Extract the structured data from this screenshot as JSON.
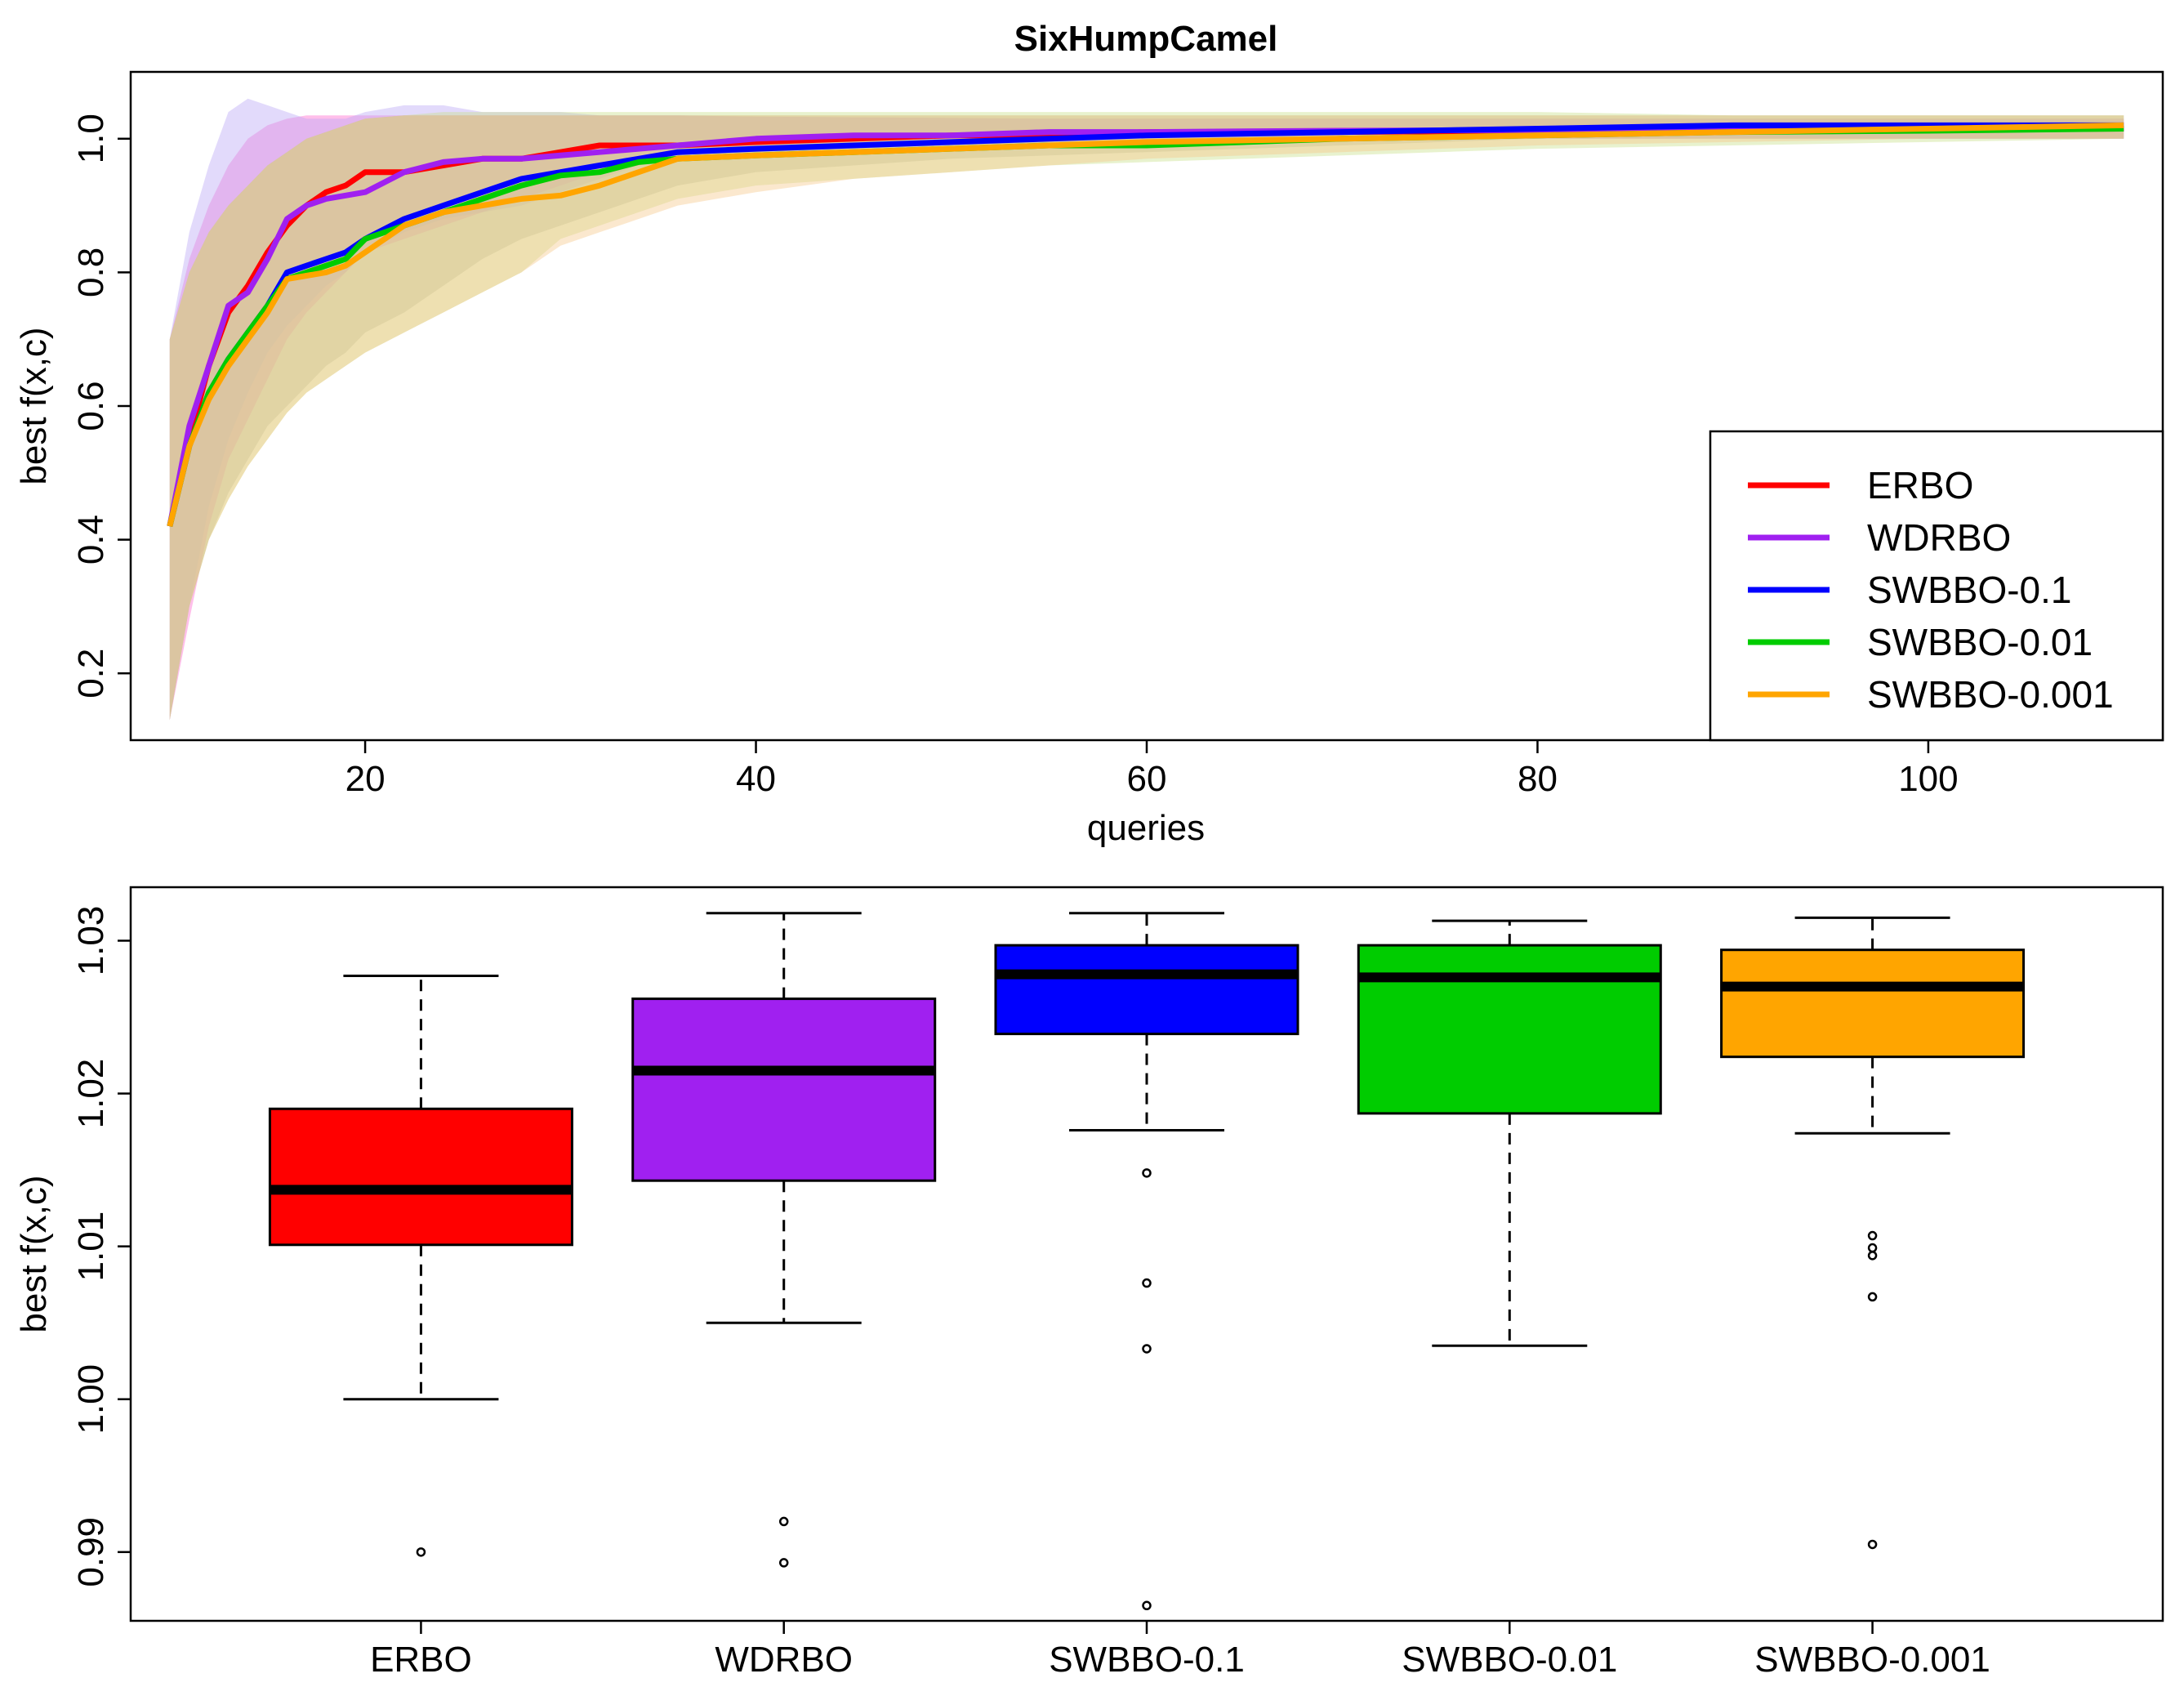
{
  "chart_data": [
    {
      "type": "line",
      "title": "SixHumpCamel",
      "xlabel": "queries",
      "ylabel": "best f(x,c)",
      "xlim": [
        8,
        112
      ],
      "ylim": [
        0.1,
        1.1
      ],
      "x_ticks": [
        20,
        40,
        60,
        80,
        100
      ],
      "y_ticks": [
        0.2,
        0.4,
        0.6,
        0.8,
        1.0
      ],
      "x_tick_labels": [
        "20",
        "40",
        "60",
        "80",
        "100"
      ],
      "y_tick_labels": [
        "0.2",
        "0.4",
        "0.6",
        "0.8",
        "1.0"
      ],
      "legend_position": "bottom-right",
      "x": [
        10,
        11,
        12,
        13,
        14,
        15,
        16,
        17,
        18,
        19,
        20,
        22,
        24,
        26,
        28,
        30,
        32,
        34,
        36,
        40,
        45,
        50,
        55,
        60,
        70,
        80,
        90,
        100,
        110
      ],
      "series": [
        {
          "name": "ERBO",
          "color": "#ff0000",
          "band_color": "#ff66cc",
          "mean": [
            0.42,
            0.55,
            0.66,
            0.74,
            0.78,
            0.83,
            0.87,
            0.9,
            0.92,
            0.93,
            0.95,
            0.95,
            0.96,
            0.97,
            0.97,
            0.98,
            0.99,
            0.99,
            0.99,
            0.995,
            1.0,
            1.005,
            1.005,
            1.01,
            1.01,
            1.012,
            1.013,
            1.014,
            1.015
          ],
          "lower": [
            0.13,
            0.28,
            0.42,
            0.52,
            0.58,
            0.64,
            0.7,
            0.74,
            0.77,
            0.8,
            0.83,
            0.85,
            0.87,
            0.89,
            0.91,
            0.93,
            0.95,
            0.96,
            0.97,
            0.98,
            0.985,
            0.99,
            0.995,
            0.995,
            1.0,
            1.0,
            1.0,
            1.0,
            1.0
          ],
          "upper": [
            0.7,
            0.82,
            0.9,
            0.96,
            1.0,
            1.02,
            1.03,
            1.035,
            1.035,
            1.035,
            1.035,
            1.035,
            1.035,
            1.035,
            1.035,
            1.035,
            1.035,
            1.035,
            1.035,
            1.033,
            1.032,
            1.031,
            1.03,
            1.03,
            1.03,
            1.03,
            1.03,
            1.03,
            1.03
          ]
        },
        {
          "name": "WDRBO",
          "color": "#a020f0",
          "band_color": "#b9a6f5",
          "mean": [
            0.42,
            0.57,
            0.66,
            0.75,
            0.77,
            0.82,
            0.88,
            0.9,
            0.91,
            0.915,
            0.92,
            0.95,
            0.965,
            0.97,
            0.97,
            0.975,
            0.98,
            0.985,
            0.99,
            1.0,
            1.005,
            1.005,
            1.01,
            1.01,
            1.012,
            1.013,
            1.014,
            1.015,
            1.015
          ],
          "lower": [
            0.13,
            0.3,
            0.45,
            0.55,
            0.62,
            0.68,
            0.72,
            0.75,
            0.78,
            0.8,
            0.83,
            0.86,
            0.88,
            0.89,
            0.9,
            0.92,
            0.94,
            0.96,
            0.97,
            0.98,
            0.985,
            0.99,
            0.99,
            0.995,
            1.0,
            1.0,
            1.0,
            1.0,
            1.0
          ],
          "upper": [
            0.7,
            0.86,
            0.96,
            1.04,
            1.06,
            1.05,
            1.04,
            1.03,
            1.03,
            1.03,
            1.04,
            1.05,
            1.05,
            1.04,
            1.04,
            1.04,
            1.035,
            1.035,
            1.035,
            1.033,
            1.032,
            1.031,
            1.03,
            1.03,
            1.03,
            1.03,
            1.03,
            1.03,
            1.03
          ]
        },
        {
          "name": "SWBBO-0.1",
          "color": "#0000ff",
          "band_color": "#a8a8a0",
          "mean": [
            0.42,
            0.54,
            0.62,
            0.67,
            0.71,
            0.75,
            0.8,
            0.81,
            0.82,
            0.83,
            0.85,
            0.88,
            0.9,
            0.92,
            0.94,
            0.95,
            0.96,
            0.97,
            0.98,
            0.985,
            0.99,
            0.995,
            1.0,
            1.005,
            1.01,
            1.015,
            1.02,
            1.02,
            1.02
          ],
          "lower": [
            0.13,
            0.3,
            0.4,
            0.47,
            0.52,
            0.57,
            0.6,
            0.63,
            0.66,
            0.68,
            0.71,
            0.74,
            0.78,
            0.82,
            0.85,
            0.87,
            0.89,
            0.91,
            0.93,
            0.95,
            0.96,
            0.97,
            0.975,
            0.98,
            0.99,
            1.0,
            1.0,
            1.0,
            1.0
          ],
          "upper": [
            0.7,
            0.8,
            0.86,
            0.9,
            0.93,
            0.96,
            0.98,
            1.0,
            1.01,
            1.02,
            1.03,
            1.035,
            1.035,
            1.035,
            1.035,
            1.035,
            1.035,
            1.035,
            1.035,
            1.035,
            1.035,
            1.035,
            1.035,
            1.035,
            1.035,
            1.035,
            1.035,
            1.035,
            1.035
          ]
        },
        {
          "name": "SWBBO-0.01",
          "color": "#00cc00",
          "band_color": "#c8e08a",
          "mean": [
            0.42,
            0.54,
            0.62,
            0.67,
            0.71,
            0.75,
            0.79,
            0.8,
            0.81,
            0.82,
            0.85,
            0.87,
            0.89,
            0.91,
            0.93,
            0.945,
            0.95,
            0.965,
            0.97,
            0.975,
            0.98,
            0.985,
            0.99,
            0.99,
            1.0,
            1.005,
            1.01,
            1.012,
            1.015
          ],
          "lower": [
            0.13,
            0.3,
            0.4,
            0.46,
            0.51,
            0.55,
            0.59,
            0.62,
            0.64,
            0.66,
            0.68,
            0.71,
            0.74,
            0.77,
            0.8,
            0.85,
            0.87,
            0.89,
            0.91,
            0.93,
            0.94,
            0.95,
            0.96,
            0.965,
            0.975,
            0.985,
            0.99,
            0.995,
            1.0
          ],
          "upper": [
            0.7,
            0.8,
            0.86,
            0.9,
            0.93,
            0.96,
            0.98,
            1.0,
            1.01,
            1.02,
            1.03,
            1.035,
            1.04,
            1.04,
            1.04,
            1.04,
            1.04,
            1.04,
            1.04,
            1.04,
            1.04,
            1.04,
            1.04,
            1.04,
            1.04,
            1.04,
            1.035,
            1.035,
            1.035
          ]
        },
        {
          "name": "SWBBO-0.001",
          "color": "#ffa500",
          "band_color": "#f5c98a",
          "mean": [
            0.42,
            0.54,
            0.61,
            0.66,
            0.7,
            0.74,
            0.79,
            0.795,
            0.8,
            0.81,
            0.83,
            0.87,
            0.89,
            0.9,
            0.91,
            0.915,
            0.93,
            0.95,
            0.97,
            0.975,
            0.98,
            0.985,
            0.99,
            0.995,
            1.0,
            1.005,
            1.01,
            1.015,
            1.02
          ],
          "lower": [
            0.13,
            0.3,
            0.4,
            0.46,
            0.51,
            0.55,
            0.59,
            0.62,
            0.64,
            0.66,
            0.68,
            0.71,
            0.74,
            0.77,
            0.8,
            0.84,
            0.86,
            0.88,
            0.9,
            0.92,
            0.94,
            0.95,
            0.96,
            0.97,
            0.98,
            0.99,
            0.995,
            1.0,
            1.0
          ],
          "upper": [
            0.7,
            0.8,
            0.86,
            0.9,
            0.93,
            0.96,
            0.98,
            1.0,
            1.01,
            1.02,
            1.03,
            1.035,
            1.035,
            1.035,
            1.035,
            1.035,
            1.035,
            1.035,
            1.035,
            1.035,
            1.035,
            1.035,
            1.035,
            1.035,
            1.035,
            1.035,
            1.035,
            1.035,
            1.035
          ]
        }
      ]
    },
    {
      "type": "box",
      "ylabel": "best f(x,c)",
      "ylim": [
        0.9855,
        1.0335
      ],
      "y_ticks": [
        0.99,
        1.0,
        1.01,
        1.02,
        1.03
      ],
      "y_tick_labels": [
        "0.99",
        "1.00",
        "1.01",
        "1.02",
        "1.03"
      ],
      "categories": [
        "ERBO",
        "WDRBO",
        "SWBBO-0.1",
        "SWBBO-0.01",
        "SWBBO-0.001"
      ],
      "boxes": [
        {
          "name": "ERBO",
          "color": "#ff0000",
          "whisker_low": 1.0,
          "q1": 1.0101,
          "median": 1.0137,
          "q3": 1.019,
          "whisker_high": 1.0277,
          "outliers": [
            0.99
          ]
        },
        {
          "name": "WDRBO",
          "color": "#a020f0",
          "whisker_low": 1.005,
          "q1": 1.0143,
          "median": 1.0215,
          "q3": 1.0262,
          "whisker_high": 1.0318,
          "outliers": [
            0.992,
            0.9893
          ]
        },
        {
          "name": "SWBBO-0.1",
          "color": "#0000ff",
          "whisker_low": 1.0176,
          "q1": 1.0239,
          "median": 1.0278,
          "q3": 1.0297,
          "whisker_high": 1.0318,
          "outliers": [
            1.0148,
            1.0076,
            1.0033,
            0.9865
          ]
        },
        {
          "name": "SWBBO-0.01",
          "color": "#00cc00",
          "whisker_low": 1.0035,
          "q1": 1.0187,
          "median": 1.0276,
          "q3": 1.0297,
          "whisker_high": 1.0313,
          "outliers": []
        },
        {
          "name": "SWBBO-0.001",
          "color": "#ffa500",
          "whisker_low": 1.0174,
          "q1": 1.0224,
          "median": 1.027,
          "q3": 1.0294,
          "whisker_high": 1.0315,
          "outliers": [
            1.0107,
            1.0099,
            1.0094,
            1.0067,
            0.9905
          ]
        }
      ]
    }
  ]
}
